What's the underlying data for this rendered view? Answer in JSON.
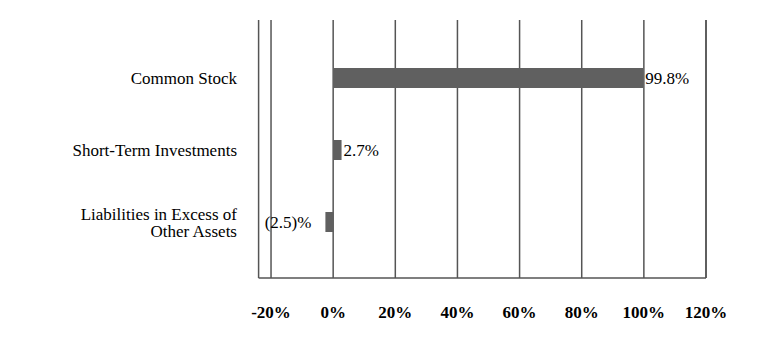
{
  "chart_data": {
    "type": "bar",
    "orientation": "horizontal",
    "categories": [
      "Common Stock",
      "Short-Term Investments",
      "Liabilities in Excess of\nOther Assets"
    ],
    "values": [
      99.8,
      2.7,
      -2.5
    ],
    "value_labels": [
      "99.8%",
      "2.7%",
      "(2.5)%"
    ],
    "data_labels": true,
    "color": "#606060",
    "xlim": [
      -24,
      120
    ],
    "xticks": [
      {
        "value": -20,
        "label": "-20%"
      },
      {
        "value": 0,
        "label": "0%"
      },
      {
        "value": 20,
        "label": "20%"
      },
      {
        "value": 40,
        "label": "40%"
      },
      {
        "value": 60,
        "label": "60%"
      },
      {
        "value": 80,
        "label": "80%"
      },
      {
        "value": 100,
        "label": "100%"
      },
      {
        "value": 120,
        "label": "120%"
      }
    ],
    "grid": true
  }
}
